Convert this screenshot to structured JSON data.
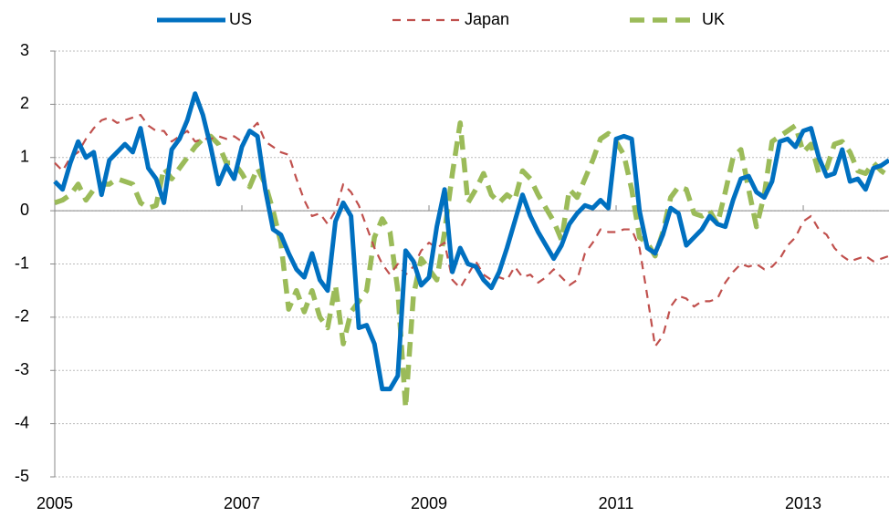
{
  "chart_data": {
    "type": "line",
    "categories": [
      "2005",
      null,
      null,
      null,
      null,
      null,
      null,
      null,
      null,
      null,
      null,
      null,
      null,
      null,
      null,
      null,
      null,
      null,
      null,
      null,
      null,
      null,
      null,
      null,
      "2007",
      null,
      null,
      null,
      null,
      null,
      null,
      null,
      null,
      null,
      null,
      null,
      null,
      null,
      null,
      null,
      null,
      null,
      null,
      null,
      null,
      null,
      null,
      null,
      "2009",
      null,
      null,
      null,
      null,
      null,
      null,
      null,
      null,
      null,
      null,
      null,
      null,
      null,
      null,
      null,
      null,
      null,
      null,
      null,
      null,
      null,
      null,
      null,
      "2011",
      null,
      null,
      null,
      null,
      null,
      null,
      null,
      null,
      null,
      null,
      null,
      null,
      null,
      null,
      null,
      null,
      null,
      null,
      null,
      null,
      null,
      null,
      null,
      "2013",
      null,
      null,
      null,
      null,
      null,
      null,
      null,
      null,
      null,
      null,
      null
    ],
    "series": [
      {
        "name": "US",
        "color": "#0070c0",
        "dash": "solid",
        "values": [
          0.55,
          0.4,
          0.9,
          1.3,
          1.0,
          1.1,
          0.3,
          0.95,
          1.1,
          1.25,
          1.1,
          1.55,
          0.8,
          0.6,
          0.15,
          1.15,
          1.35,
          1.7,
          2.2,
          1.8,
          1.2,
          0.5,
          0.85,
          0.6,
          1.2,
          1.5,
          1.4,
          0.4,
          -0.35,
          -0.45,
          -0.8,
          -1.1,
          -1.25,
          -0.8,
          -1.3,
          -1.5,
          -0.2,
          0.15,
          -0.1,
          -2.2,
          -2.15,
          -2.5,
          -3.35,
          -3.35,
          -3.1,
          -0.75,
          -0.95,
          -1.4,
          -1.25,
          -0.3,
          0.4,
          -1.15,
          -0.7,
          -1.0,
          -1.05,
          -1.3,
          -1.45,
          -1.15,
          -0.7,
          -0.2,
          0.3,
          -0.1,
          -0.4,
          -0.65,
          -0.9,
          -0.65,
          -0.25,
          -0.05,
          0.1,
          0.05,
          0.2,
          0.05,
          1.35,
          1.4,
          1.35,
          0.0,
          -0.7,
          -0.8,
          -0.45,
          0.05,
          -0.05,
          -0.65,
          -0.5,
          -0.35,
          -0.1,
          -0.25,
          -0.3,
          0.2,
          0.6,
          0.65,
          0.35,
          0.25,
          0.55,
          1.3,
          1.35,
          1.2,
          1.5,
          1.55,
          1.0,
          0.65,
          0.7,
          1.15,
          0.55,
          0.6,
          0.4,
          0.8,
          0.85,
          0.95
        ]
      },
      {
        "name": "Japan",
        "color": "#c0504d",
        "dash": "dashed",
        "values": [
          0.9,
          0.75,
          1.0,
          1.1,
          1.35,
          1.55,
          1.7,
          1.75,
          1.65,
          1.7,
          1.75,
          1.8,
          1.6,
          1.5,
          1.5,
          1.3,
          1.4,
          1.5,
          1.3,
          1.35,
          1.35,
          1.4,
          1.35,
          1.4,
          1.3,
          1.5,
          1.65,
          1.3,
          1.2,
          1.1,
          1.05,
          0.6,
          0.2,
          -0.1,
          -0.05,
          -0.25,
          0.0,
          0.5,
          0.35,
          0.1,
          -0.3,
          -0.7,
          -1.0,
          -1.2,
          -1.0,
          -1.2,
          -1.05,
          -0.75,
          -0.6,
          -0.7,
          -0.6,
          -1.3,
          -1.45,
          -1.2,
          -0.95,
          -1.2,
          -1.3,
          -1.25,
          -1.3,
          -1.05,
          -1.25,
          -1.2,
          -1.35,
          -1.25,
          -1.1,
          -1.25,
          -1.4,
          -1.3,
          -0.8,
          -0.6,
          -0.35,
          -0.4,
          -0.4,
          -0.35,
          -0.35,
          -0.7,
          -1.6,
          -2.55,
          -2.35,
          -1.8,
          -1.6,
          -1.65,
          -1.8,
          -1.7,
          -1.7,
          -1.65,
          -1.35,
          -1.15,
          -1.0,
          -1.05,
          -1.0,
          -1.1,
          -1.05,
          -0.9,
          -0.65,
          -0.5,
          -0.2,
          -0.1,
          -0.35,
          -0.45,
          -0.7,
          -0.85,
          -0.95,
          -0.9,
          -0.85,
          -0.95,
          -0.9,
          -0.85
        ]
      },
      {
        "name": "UK",
        "color": "#9bbb59",
        "dash": "longdash",
        "values": [
          0.15,
          0.2,
          0.3,
          0.5,
          0.2,
          0.4,
          0.5,
          0.5,
          0.6,
          0.55,
          0.5,
          0.15,
          0.05,
          0.1,
          0.8,
          0.6,
          0.8,
          1.0,
          1.2,
          1.35,
          1.4,
          1.25,
          0.9,
          0.9,
          0.7,
          0.45,
          0.8,
          0.5,
          0.0,
          -0.6,
          -1.85,
          -1.5,
          -1.9,
          -1.5,
          -2.0,
          -2.2,
          -1.4,
          -2.5,
          -1.9,
          -1.7,
          -1.5,
          -0.5,
          -0.15,
          -0.4,
          -1.5,
          -3.7,
          -1.6,
          -0.9,
          -1.1,
          -1.3,
          -0.4,
          0.7,
          1.65,
          0.15,
          0.4,
          0.7,
          0.3,
          0.15,
          0.3,
          0.2,
          0.75,
          0.6,
          0.3,
          0.05,
          -0.2,
          -0.55,
          0.4,
          0.25,
          0.6,
          0.95,
          1.35,
          1.45,
          1.3,
          1.05,
          0.4,
          -0.5,
          -0.6,
          -0.85,
          -0.4,
          0.25,
          0.45,
          0.4,
          -0.05,
          -0.1,
          0.0,
          -0.25,
          0.35,
          1.0,
          1.15,
          0.4,
          -0.3,
          0.3,
          1.3,
          1.4,
          1.5,
          1.6,
          1.1,
          1.25,
          0.7,
          0.8,
          1.25,
          1.3,
          1.1,
          0.75,
          0.7,
          0.9,
          0.75,
          0.65
        ]
      }
    ],
    "ylim": [
      -5,
      3
    ],
    "yticks": [
      -5,
      -4,
      -3,
      -2,
      -1,
      0,
      1,
      2,
      3
    ],
    "grid": true,
    "legend": "top"
  }
}
